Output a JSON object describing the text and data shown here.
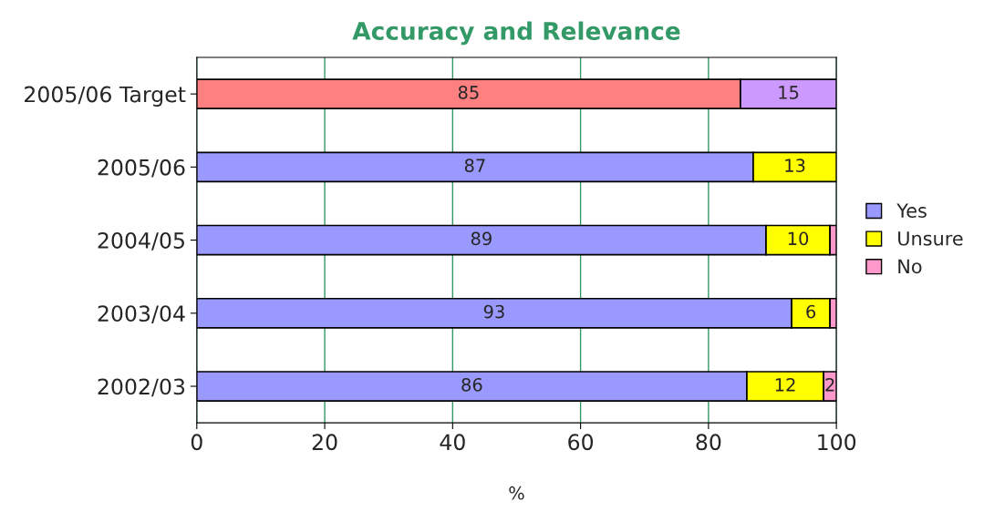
{
  "chart_data": {
    "type": "bar",
    "orientation": "horizontal",
    "stacked": true,
    "title": "Accuracy and Relevance",
    "xlabel": "%",
    "categories": [
      "2005/06 Target",
      "2005/06",
      "2004/05",
      "2003/04",
      "2002/03"
    ],
    "series": [
      {
        "name": "Yes",
        "color": "#9999ff",
        "colors": [
          "#ff8080",
          "#9999ff",
          "#9999ff",
          "#9999ff",
          "#9999ff"
        ],
        "values": [
          85,
          87,
          89,
          93,
          86
        ],
        "value_labels": [
          "85",
          "87",
          "89",
          "93",
          "86"
        ]
      },
      {
        "name": "Unsure",
        "color": "#ffff00",
        "colors": [
          "#cc99ff",
          "#ffff00",
          "#ffff00",
          "#ffff00",
          "#ffff00"
        ],
        "values": [
          15,
          13,
          10,
          6,
          12
        ],
        "value_labels": [
          "15",
          "13",
          "10",
          "6",
          "12"
        ]
      },
      {
        "name": "No",
        "color": "#ff99cc",
        "values": [
          null,
          null,
          1,
          1,
          2
        ],
        "value_labels": [
          null,
          null,
          null,
          null,
          "2"
        ]
      }
    ],
    "xlim": [
      0,
      100
    ],
    "xticks": [
      0,
      20,
      40,
      60,
      80,
      100
    ],
    "grid": "x",
    "legend": "right"
  }
}
